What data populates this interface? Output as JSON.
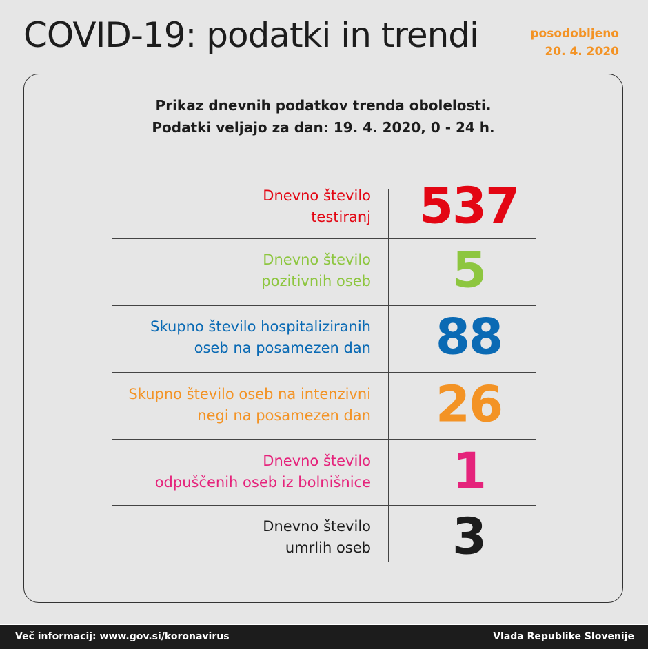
{
  "header": {
    "title": "COVID-19: podatki in trendi",
    "updated_label": "posodobljeno",
    "updated_date": "20. 4. 2020"
  },
  "subtitle": {
    "line1": "Prikaz dnevnih podatkov trenda obolelosti.",
    "line2": "Podatki veljajo za dan: 19. 4. 2020, 0 - 24 h."
  },
  "stats": [
    {
      "line1": "Dnevno število",
      "line2": "testiranj",
      "value": "537",
      "color": "#e30613"
    },
    {
      "line1": "Dnevno število",
      "line2": "pozitivnih oseb",
      "value": "5",
      "color": "#8dc63f"
    },
    {
      "line1": "Skupno število hospitaliziranih",
      "line2": "oseb na posamezen dan",
      "value": "88",
      "color": "#0a6ab4"
    },
    {
      "line1": "Skupno število oseb na intenzivni",
      "line2": "negi na posamezen dan",
      "value": "26",
      "color": "#f39325"
    },
    {
      "line1": "Dnevno število",
      "line2": "odpuščenih oseb iz bolnišnice",
      "value": "1",
      "color": "#e5237b"
    },
    {
      "line1": "Dnevno število",
      "line2": "umrlih oseb",
      "value": "3",
      "color": "#1c1c1c"
    }
  ],
  "footer": {
    "more_info": "Več informacij: www.gov.si/koronavirus",
    "org": "Vlada Republike Slovenije"
  }
}
